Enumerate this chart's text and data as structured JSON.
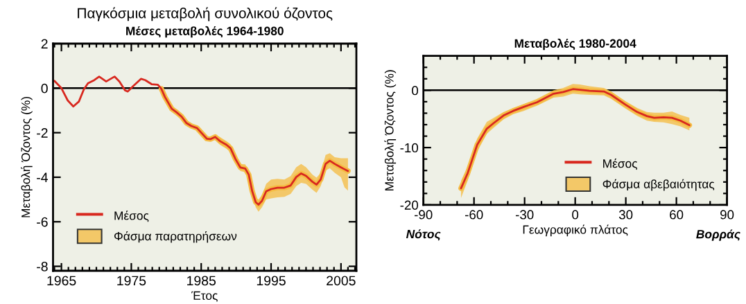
{
  "chart_data": [
    {
      "type": "line",
      "title": "Παγκόσμια μεταβολή συνολικού όζοντος",
      "subtitle": "Μέσες μεταβολές 1964-1980",
      "xlabel": "Έτος",
      "ylabel": "Μεταβολή Όζοντος (%)",
      "x": [
        1964.0,
        1965.0,
        1965.9,
        1966.7,
        1967.5,
        1968.2,
        1968.8,
        1969.7,
        1970.4,
        1971.4,
        1972.6,
        1973.3,
        1974.1,
        1974.5,
        1975.3,
        1976.4,
        1977.0,
        1977.9,
        1978.8,
        1979.3,
        1979.8,
        1980.5,
        1980.8,
        1981.5,
        1982.2,
        1982.9,
        1983.6,
        1984.4,
        1985.1,
        1985.8,
        1986.3,
        1987.0,
        1987.7,
        1988.6,
        1989.2,
        1989.9,
        1990.6,
        1991.3,
        1991.8,
        1992.3,
        1992.8,
        1993.2,
        1993.7,
        1994.3,
        1995.0,
        1995.9,
        1996.9,
        1997.8,
        1998.6,
        1999.3,
        2000.0,
        2000.9,
        2001.5,
        2002.1,
        2002.8,
        2003.4,
        2004.1,
        2005.0,
        2005.5,
        2006.0
      ],
      "series": [
        {
          "name": "Φάσμα παρατηρήσεων",
          "color": "#f5bd45",
          "x": [
            1979.3,
            1979.8,
            1980.5,
            1980.8,
            1981.5,
            1982.2,
            1982.9,
            1983.6,
            1984.4,
            1985.1,
            1985.8,
            1986.3,
            1987.0,
            1987.7,
            1988.6,
            1989.2,
            1989.9,
            1990.6,
            1991.3,
            1991.8,
            1992.3,
            1992.8,
            1993.2,
            1993.7,
            1994.3,
            1995.0,
            1995.9,
            1996.9,
            1997.8,
            1998.6,
            1999.3,
            2000.0,
            2000.9,
            2001.5,
            2002.1,
            2002.8,
            2003.4,
            2004.1,
            2005.0,
            2005.5,
            2006.0
          ],
          "values": [
            -0.03,
            -0.39,
            -0.77,
            -0.93,
            -1.09,
            -1.28,
            -1.57,
            -1.7,
            -1.79,
            -2.03,
            -2.27,
            -2.29,
            -2.19,
            -2.38,
            -2.54,
            -2.7,
            -3.18,
            -3.56,
            -3.61,
            -3.88,
            -4.63,
            -5.12,
            -5.23,
            -5.06,
            -4.63,
            -4.53,
            -4.47,
            -4.47,
            -4.37,
            -3.99,
            -3.83,
            -3.94,
            -4.2,
            -4.33,
            -4.1,
            -3.4,
            -3.26,
            -3.4,
            -3.56,
            -3.64,
            -3.72
          ],
          "lower": [
            -0.08,
            -0.5,
            -0.9,
            -1.05,
            -1.2,
            -1.4,
            -1.66,
            -1.78,
            -1.87,
            -2.12,
            -2.35,
            -2.38,
            -2.32,
            -2.55,
            -2.72,
            -2.88,
            -3.35,
            -3.72,
            -3.78,
            -4.05,
            -4.82,
            -5.35,
            -5.55,
            -5.35,
            -5.0,
            -4.95,
            -4.9,
            -4.88,
            -4.75,
            -4.4,
            -4.25,
            -4.3,
            -4.55,
            -4.7,
            -4.4,
            -3.7,
            -3.6,
            -3.8,
            -4.0,
            -4.45,
            -4.6
          ],
          "upper": [
            0.02,
            -0.3,
            -0.65,
            -0.8,
            -0.98,
            -1.18,
            -1.48,
            -1.62,
            -1.71,
            -1.94,
            -2.18,
            -2.18,
            -2.07,
            -2.2,
            -2.38,
            -2.52,
            -3.0,
            -3.4,
            -3.42,
            -3.7,
            -4.45,
            -4.92,
            -5.0,
            -4.8,
            -4.3,
            -4.1,
            -4.07,
            -4.1,
            -3.95,
            -3.55,
            -3.4,
            -3.55,
            -3.88,
            -4.02,
            -3.8,
            -3.0,
            -2.92,
            -3.1,
            -3.15,
            -3.15,
            -3.15
          ]
        },
        {
          "name": "Μέσος",
          "color": "#d8281f",
          "values": [
            0.33,
            0.0,
            -0.55,
            -0.82,
            -0.6,
            -0.06,
            0.22,
            0.36,
            0.52,
            0.3,
            0.52,
            0.3,
            -0.1,
            -0.15,
            0.1,
            0.42,
            0.36,
            0.18,
            0.15,
            -0.03,
            -0.39,
            -0.77,
            -0.93,
            -1.09,
            -1.28,
            -1.57,
            -1.7,
            -1.79,
            -2.03,
            -2.27,
            -2.29,
            -2.19,
            -2.38,
            -2.54,
            -2.7,
            -3.18,
            -3.56,
            -3.61,
            -3.88,
            -4.63,
            -5.12,
            -5.23,
            -5.06,
            -4.63,
            -4.53,
            -4.47,
            -4.47,
            -4.37,
            -3.99,
            -3.83,
            -3.94,
            -4.2,
            -4.33,
            -4.1,
            -3.4,
            -3.26,
            -3.4,
            -3.56,
            -3.64,
            -3.72
          ]
        }
      ],
      "xlim": [
        1963.8,
        2007.2
      ],
      "ylim": [
        -8.2,
        2
      ],
      "xticks": [
        {
          "value": 1964,
          "label": null
        },
        1965,
        {
          "value": 1966,
          "label": null
        },
        {
          "value": 1967,
          "label": null
        },
        {
          "value": 1968,
          "label": null
        },
        {
          "value": 1969,
          "label": null
        },
        {
          "value": 1970,
          "label": null
        },
        {
          "value": 1971,
          "label": null
        },
        {
          "value": 1972,
          "label": null
        },
        {
          "value": 1973,
          "label": null
        },
        {
          "value": 1974,
          "label": null
        },
        1975,
        {
          "value": 1976,
          "label": null
        },
        {
          "value": 1977,
          "label": null
        },
        {
          "value": 1978,
          "label": null
        },
        {
          "value": 1979,
          "label": null
        },
        {
          "value": 1980,
          "label": null
        },
        {
          "value": 1981,
          "label": null
        },
        {
          "value": 1982,
          "label": null
        },
        {
          "value": 1983,
          "label": null
        },
        {
          "value": 1984,
          "label": null
        },
        1985,
        {
          "value": 1986,
          "label": null
        },
        {
          "value": 1987,
          "label": null
        },
        {
          "value": 1988,
          "label": null
        },
        {
          "value": 1989,
          "label": null
        },
        {
          "value": 1990,
          "label": null
        },
        {
          "value": 1991,
          "label": null
        },
        {
          "value": 1992,
          "label": null
        },
        {
          "value": 1993,
          "label": null
        },
        {
          "value": 1994,
          "label": null
        },
        1995,
        {
          "value": 1996,
          "label": null
        },
        {
          "value": 1997,
          "label": null
        },
        {
          "value": 1998,
          "label": null
        },
        {
          "value": 1999,
          "label": null
        },
        {
          "value": 2000,
          "label": null
        },
        {
          "value": 2001,
          "label": null
        },
        {
          "value": 2002,
          "label": null
        },
        {
          "value": 2003,
          "label": null
        },
        {
          "value": 2004,
          "label": null
        },
        2005,
        {
          "value": 2006,
          "label": null
        },
        {
          "value": 2007,
          "label": null
        }
      ],
      "yticks": [
        2,
        0,
        -2,
        -4,
        -6,
        -8
      ],
      "ref_lines": [
        {
          "axis": "y",
          "value": 0,
          "color": "#000000"
        }
      ],
      "legend": "lower left"
    },
    {
      "type": "line",
      "title": "Μεταβολές 1980-2004",
      "xlabel": "Γεωγραφικό πλάτος",
      "ylabel": "Μεταβολή Όζοντος (%)",
      "x": [
        -67.7,
        -63.8,
        -58.1,
        -52.4,
        -48.2,
        -42.5,
        -36.8,
        -30.5,
        -22.7,
        -12.8,
        -7.1,
        -1.4,
        2.8,
        8.5,
        17.0,
        21.3,
        29.8,
        36.8,
        42.5,
        46.8,
        52.4,
        57.4,
        62.4,
        67.7
      ],
      "series": [
        {
          "name": "Φάσμα αβεβαιότητας",
          "color": "#f5bd45",
          "values": [
            -17.1,
            -14.5,
            -9.5,
            -6.7,
            -5.7,
            -4.4,
            -3.6,
            -2.9,
            -2.1,
            -0.6,
            -0.3,
            0.2,
            0.1,
            -0.1,
            -0.2,
            -0.8,
            -2.5,
            -3.8,
            -4.5,
            -4.8,
            -4.7,
            -4.8,
            -5.3,
            -6.1
          ],
          "lower": [
            -18.8,
            -15.8,
            -10.7,
            -7.6,
            -6.5,
            -5.1,
            -4.2,
            -3.6,
            -2.7,
            -1.3,
            -1.1,
            -0.6,
            -0.7,
            -0.8,
            -0.9,
            -1.5,
            -3.2,
            -4.5,
            -5.3,
            -5.5,
            -5.6,
            -5.9,
            -6.3,
            -7.0
          ],
          "upper": [
            -15.8,
            -13.3,
            -8.4,
            -5.5,
            -4.8,
            -3.8,
            -3.1,
            -2.4,
            -1.5,
            0.0,
            0.4,
            1.1,
            1.0,
            0.7,
            0.4,
            -0.2,
            -1.9,
            -3.1,
            -3.8,
            -3.9,
            -3.9,
            -3.7,
            -4.3,
            -4.8
          ]
        },
        {
          "name": "Μέσος",
          "color": "#d8281f",
          "values": [
            -17.1,
            -14.5,
            -9.5,
            -6.7,
            -5.7,
            -4.4,
            -3.6,
            -2.9,
            -2.1,
            -0.6,
            -0.3,
            0.2,
            0.1,
            -0.1,
            -0.2,
            -0.8,
            -2.5,
            -3.8,
            -4.5,
            -4.8,
            -4.7,
            -4.8,
            -5.3,
            -6.1
          ]
        }
      ],
      "xlim": [
        -90,
        90
      ],
      "ylim": [
        -20,
        6
      ],
      "xticks": [
        -90,
        {
          "value": -80,
          "label": null
        },
        {
          "value": -70,
          "label": null
        },
        -60,
        {
          "value": -50,
          "label": null
        },
        {
          "value": -40,
          "label": null
        },
        -30,
        {
          "value": -20,
          "label": null
        },
        {
          "value": -10,
          "label": null
        },
        0,
        {
          "value": 10,
          "label": null
        },
        {
          "value": 20,
          "label": null
        },
        30,
        {
          "value": 40,
          "label": null
        },
        {
          "value": 50,
          "label": null
        },
        60,
        {
          "value": 70,
          "label": null
        },
        {
          "value": 80,
          "label": null
        },
        90
      ],
      "yticks": [
        {
          "value": 4,
          "label": null
        },
        {
          "value": 2,
          "label": null
        },
        0,
        {
          "value": -2,
          "label": null
        },
        {
          "value": -4,
          "label": null
        },
        {
          "value": -6,
          "label": null
        },
        {
          "value": -8,
          "label": null
        },
        -10,
        {
          "value": -12,
          "label": null
        },
        {
          "value": -14,
          "label": null
        },
        {
          "value": -16,
          "label": null
        },
        {
          "value": -18,
          "label": null
        },
        -20
      ],
      "ref_lines": [
        {
          "axis": "y",
          "value": 0,
          "color": "#000000"
        }
      ],
      "annotations": [
        "Νότος",
        "Βορράς"
      ],
      "legend": "lower right"
    }
  ]
}
